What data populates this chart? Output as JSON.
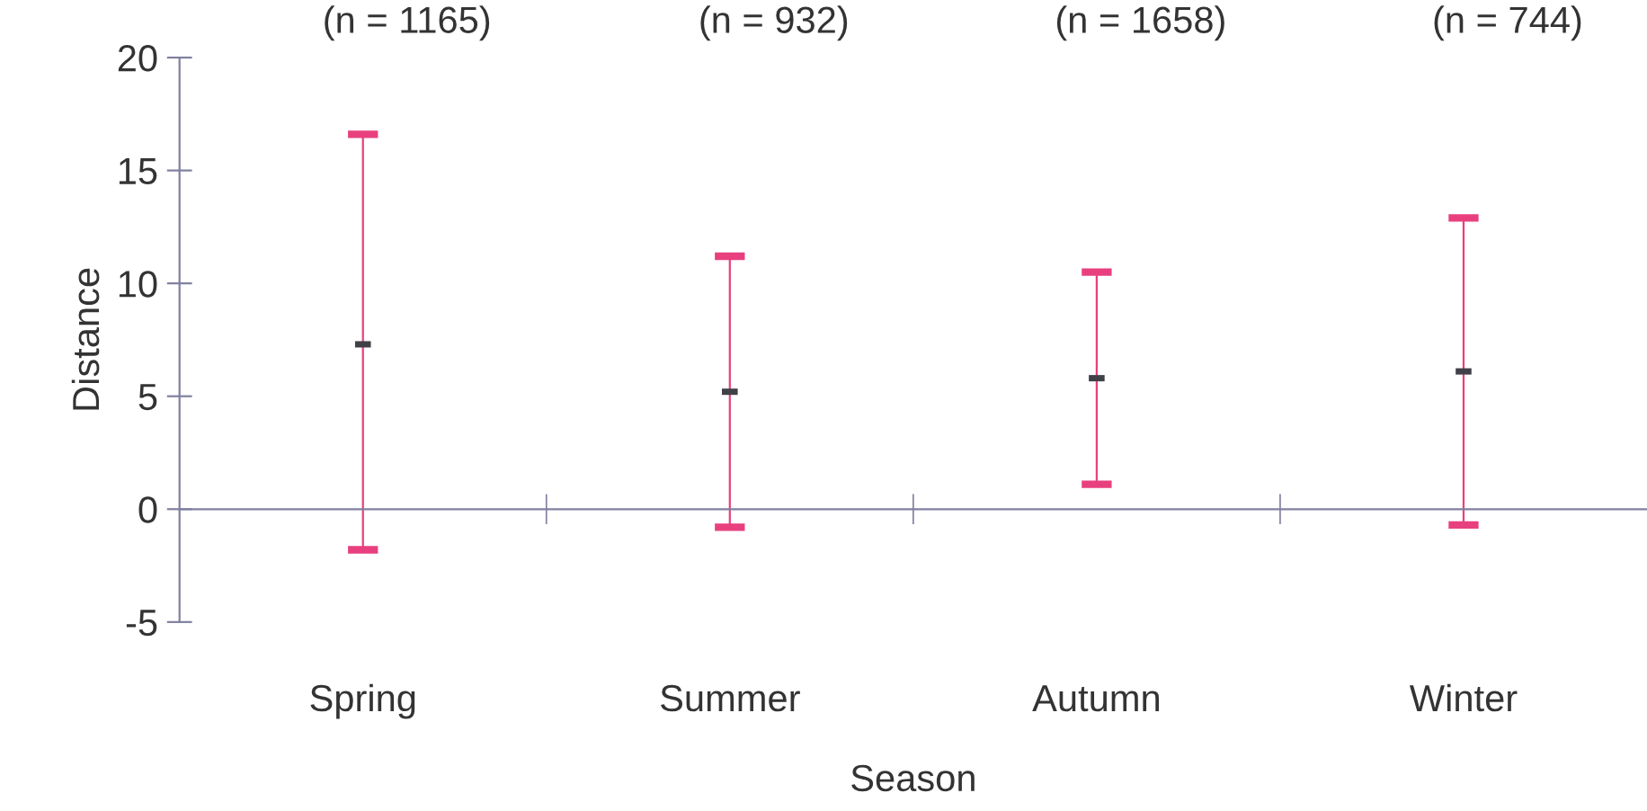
{
  "chart_data": {
    "type": "scatter",
    "xlabel": "Season",
    "ylabel": "Distance",
    "categories": [
      "Spring",
      "Summer",
      "Autumn",
      "Winter"
    ],
    "series": [
      {
        "color": "#e8407e",
        "colors": [
          "#404048",
          "#404048",
          "#404048",
          "#404048"
        ],
        "values": [
          7.3,
          5.2,
          5.8,
          6.1
        ],
        "errors": [
          [
            -1.8,
            16.6
          ],
          [
            -0.8,
            11.2
          ],
          [
            1.1,
            10.5
          ],
          [
            -0.7,
            12.9
          ]
        ]
      }
    ],
    "annotations": [
      "(n = 1165)",
      "(n = 932)",
      "(n = 1658)",
      "(n = 744)"
    ],
    "ylim": [
      -5,
      20
    ],
    "yticks": [
      -5,
      0,
      5,
      10,
      15,
      20
    ],
    "grid": false,
    "legend": false
  }
}
